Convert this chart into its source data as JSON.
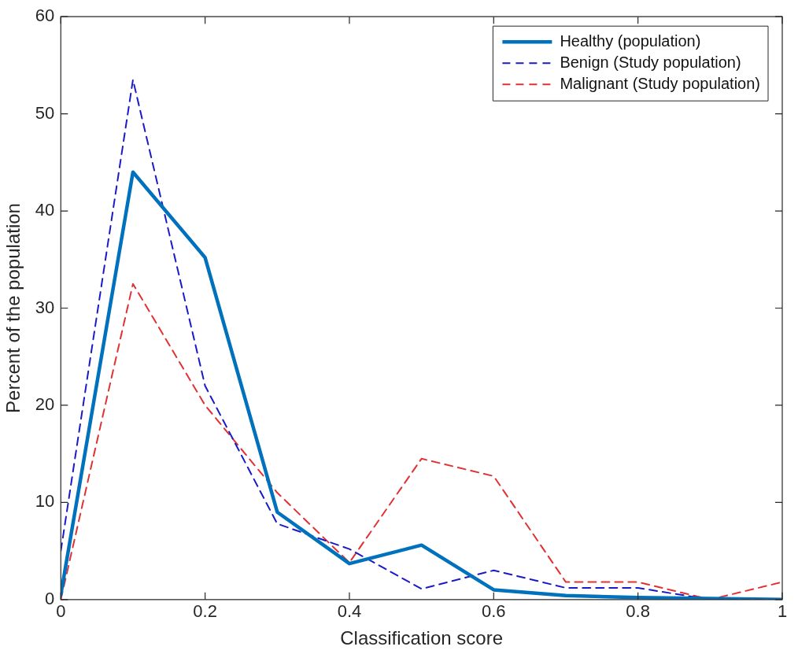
{
  "chart_data": {
    "type": "line",
    "xlabel": "Classification score",
    "ylabel": "Percent of the population",
    "x": [
      0,
      0.1,
      0.2,
      0.3,
      0.4,
      0.5,
      0.6,
      0.7,
      0.8,
      0.9,
      1
    ],
    "series": [
      {
        "name": "Healthy (population)",
        "color": "#0072bd",
        "line_style": "solid",
        "values": [
          0.5,
          44,
          35.2,
          9,
          3.7,
          5.6,
          1,
          0.4,
          0.2,
          0.1,
          0
        ]
      },
      {
        "name": "Benign (Study population)",
        "color": "#1a1ac8",
        "line_style": "dashed",
        "values": [
          5,
          53.5,
          22,
          7.8,
          5.2,
          1.1,
          3,
          1.2,
          1.2,
          0,
          0
        ]
      },
      {
        "name": "Malignant (Study population)",
        "color": "#e03232",
        "line_style": "dashed",
        "values": [
          0,
          32.5,
          20,
          11,
          3.8,
          14.5,
          12.7,
          1.8,
          1.8,
          0,
          1.8
        ]
      }
    ],
    "xlim": [
      0,
      1
    ],
    "xticks": [
      0,
      0.2,
      0.4,
      0.6,
      0.8,
      1
    ],
    "ylim": [
      0,
      60
    ],
    "yticks": [
      0,
      10,
      20,
      30,
      40,
      50,
      60
    ],
    "grid": false,
    "legend": "top right",
    "marker": "none"
  }
}
